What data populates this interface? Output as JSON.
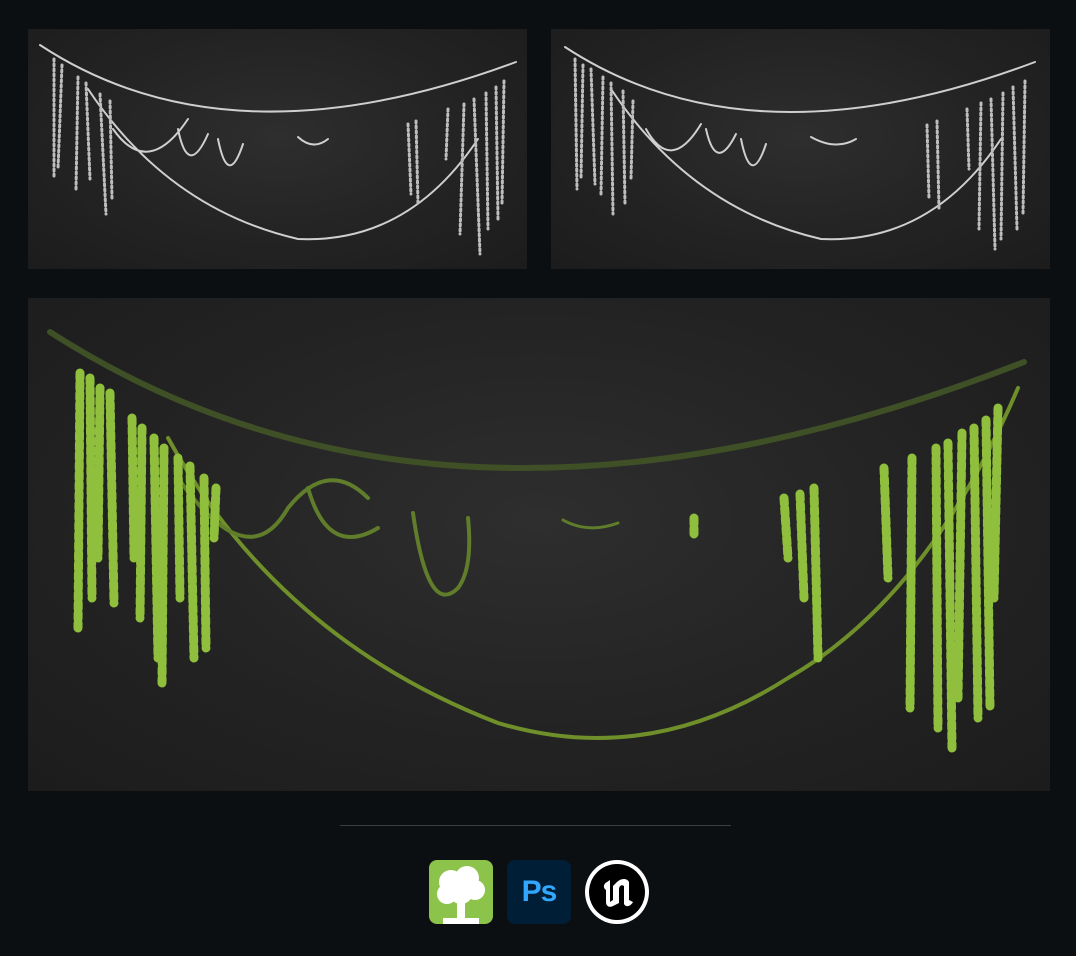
{
  "panels": [
    {
      "name": "clay-render-front",
      "material": "clay",
      "color": "#cfcfcf"
    },
    {
      "name": "clay-render-angle",
      "material": "clay",
      "color": "#cfcfcf"
    },
    {
      "name": "textured-render",
      "material": "textured",
      "color": "#7fa83a"
    }
  ],
  "tools": [
    {
      "name": "speedtree",
      "icon": "speedtree-icon",
      "label": ""
    },
    {
      "name": "photoshop",
      "icon": "photoshop-icon",
      "label": "Ps"
    },
    {
      "name": "unreal-engine",
      "icon": "unreal-engine-icon",
      "label": ""
    }
  ],
  "colors": {
    "background": "#0c0f12",
    "panel": "#262626",
    "clay": "#cfcfcf",
    "vine": "#5f7d2a",
    "leaf": "#8fbf3c",
    "speedtree": "#8cc34b",
    "photoshop_bg": "#001e36",
    "photoshop_fg": "#31a8ff"
  }
}
